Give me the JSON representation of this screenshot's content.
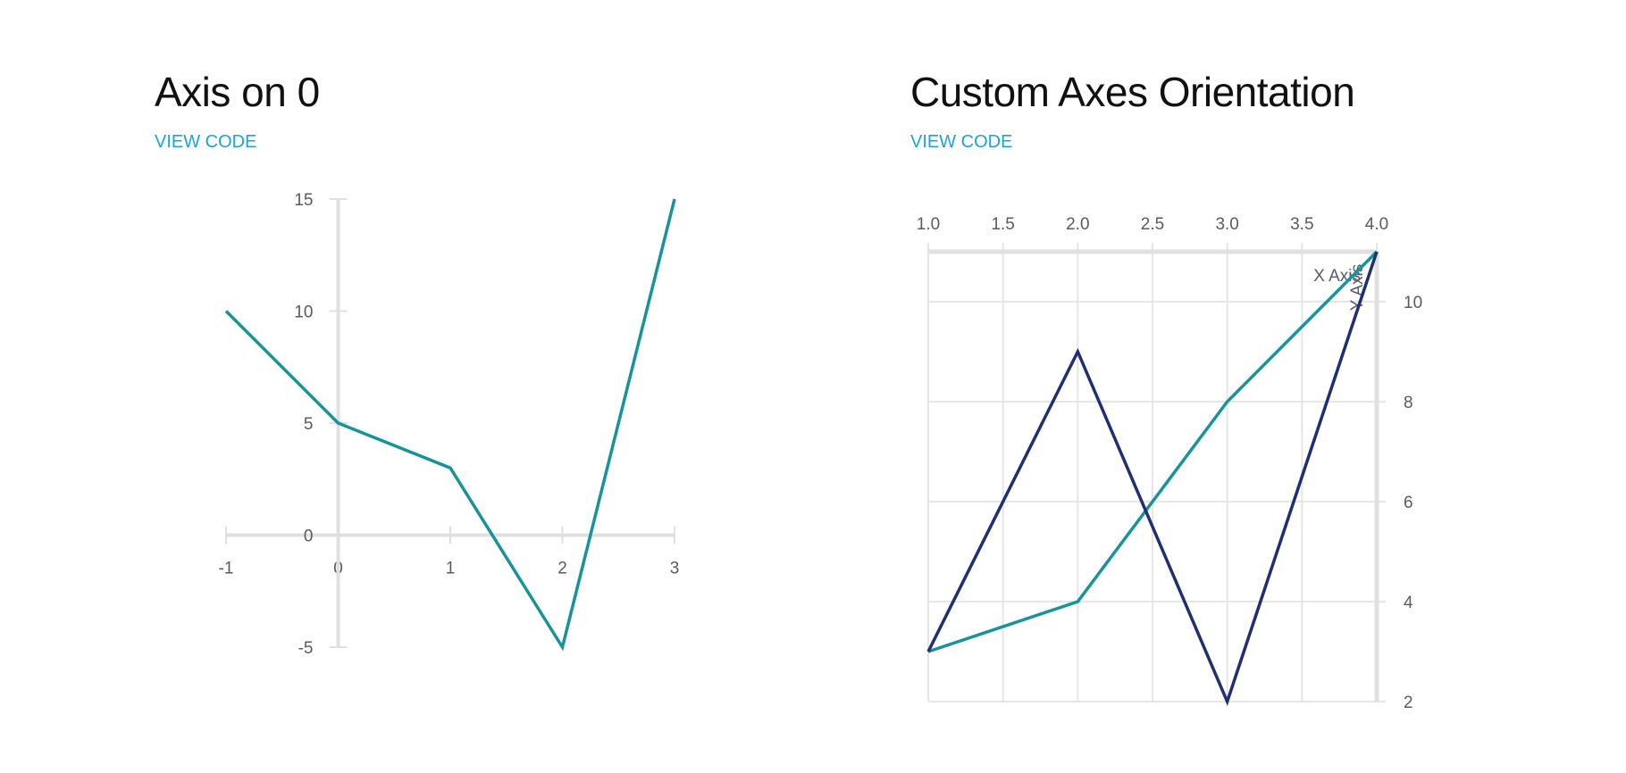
{
  "page": {
    "left_title": "Axis on 0",
    "right_title": "Custom Axes Orientation",
    "view_code_label": "VIEW CODE"
  },
  "colors": {
    "series_teal": "#17939a",
    "series_navy": "#1f2f70",
    "axis": "#e0e0e0",
    "grid": "#e6e6e6",
    "tick_text": "#5a5a66",
    "link": "#1ba4d8"
  },
  "chart_data": [
    {
      "type": "line",
      "title": "Axis on 0",
      "xlabel": "",
      "ylabel": "",
      "xlim": [
        -1,
        3
      ],
      "ylim": [
        -5,
        15
      ],
      "x_ticks": [
        -1,
        0,
        1,
        2,
        3
      ],
      "y_ticks": [
        -5,
        0,
        5,
        10,
        15
      ],
      "axes_cross_at_zero": true,
      "grid": false,
      "series": [
        {
          "x": [
            -1,
            0,
            1,
            2,
            3
          ],
          "y": [
            10,
            5,
            3,
            -5,
            15
          ]
        }
      ]
    },
    {
      "type": "line",
      "title": "Custom Axes Orientation",
      "xlabel": "X Axis",
      "ylabel": "Y Axis",
      "x_axis_position": "top",
      "y_axis_position": "right",
      "xlim": [
        1,
        4
      ],
      "ylim": [
        2,
        11
      ],
      "x_ticks": [
        1.0,
        1.5,
        2.0,
        2.5,
        3.0,
        3.5,
        4.0
      ],
      "y_ticks": [
        2,
        4,
        6,
        8,
        10
      ],
      "grid": true,
      "series": [
        {
          "x": [
            1,
            2,
            3,
            4
          ],
          "y": [
            3,
            4,
            8,
            11
          ]
        },
        {
          "x": [
            1,
            2,
            3,
            4
          ],
          "y": [
            3,
            9,
            2,
            11
          ]
        }
      ]
    }
  ]
}
